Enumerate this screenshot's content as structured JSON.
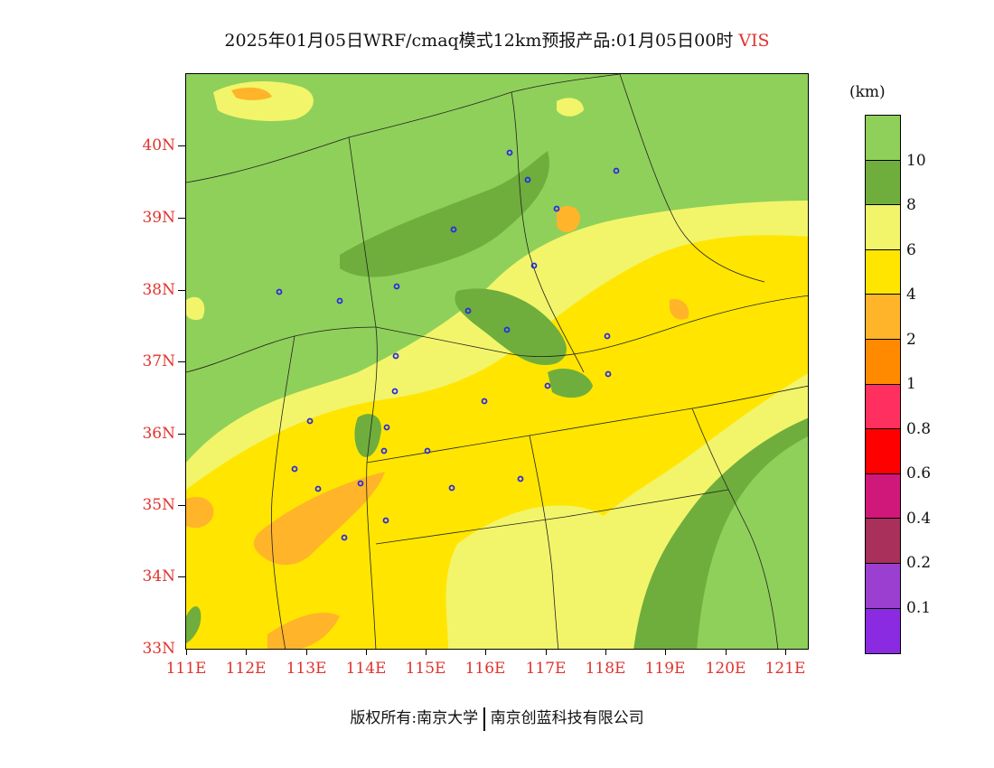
{
  "title": {
    "text": "2025年01月05日WRF/cmaq模式12km预报产品:01月05日00时",
    "variable": "VIS"
  },
  "axes": {
    "latitudes": [
      "40N",
      "39N",
      "38N",
      "37N",
      "36N",
      "35N",
      "34N",
      "33N"
    ],
    "longitudes": [
      "111E",
      "112E",
      "113E",
      "114E",
      "115E",
      "116E",
      "117E",
      "118E",
      "119E",
      "120E",
      "121E"
    ]
  },
  "legend": {
    "unit": "(km)",
    "labels": [
      "10",
      "8",
      "6",
      "4",
      "2",
      "1",
      "0.8",
      "0.6",
      "0.4",
      "0.2",
      "0.1"
    ],
    "colors": [
      "#8fd05a",
      "#6fae3c",
      "#f2f56a",
      "#ffe500",
      "#ffb42a",
      "#ff8a00",
      "#ff3060",
      "#ff0000",
      "#d0187a",
      "#a8305a",
      "#9a3fd0",
      "#8a2be2"
    ]
  },
  "footer": {
    "left": "版权所有:南京大学",
    "right": "南京创蓝科技有限公司"
  }
}
